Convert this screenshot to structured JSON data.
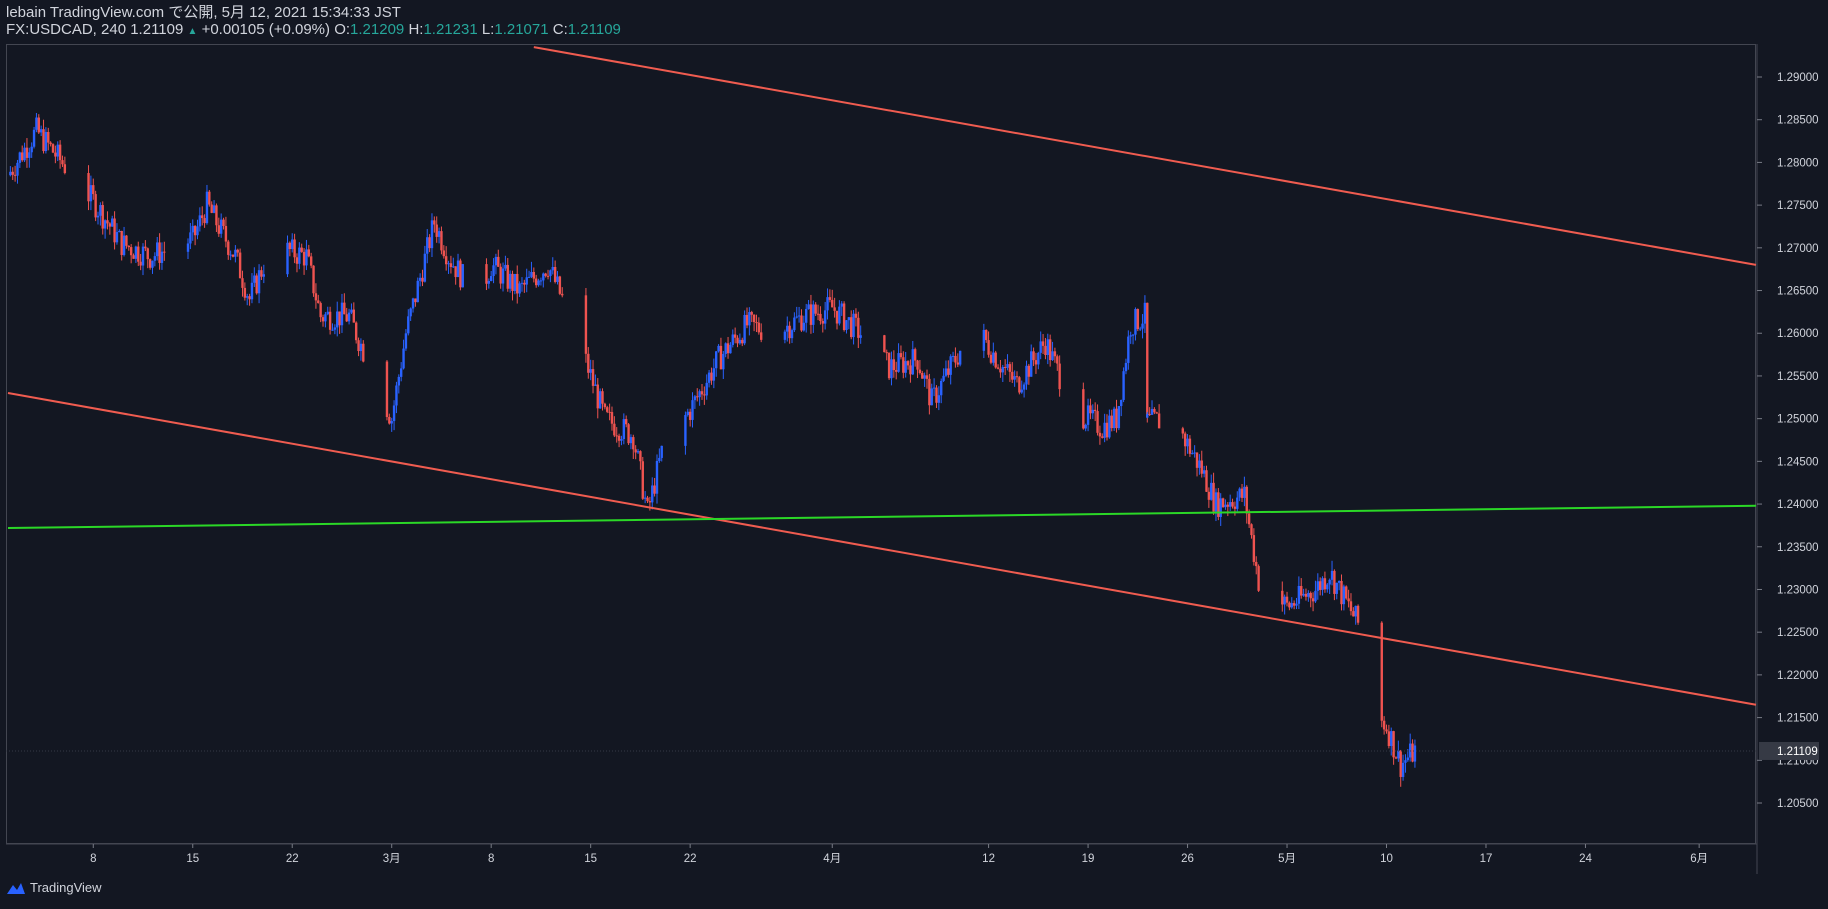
{
  "header": {
    "line1": "lebain TradingView.com で公開, 5月 12, 2021 15:34:33 JST",
    "symbol": "FX:USDCAD, 240",
    "price": "1.21109",
    "change": "+0.00105 (+0.09%)",
    "o_label": "O:",
    "o_value": "1.21209",
    "h_label": "H:",
    "h_value": "1.21231",
    "l_label": "L:",
    "l_value": "1.21071",
    "c_label": "C:",
    "c_value": "1.21109"
  },
  "brand": {
    "name": "TradingView",
    "icon": "tradingview-logo-icon"
  },
  "colors": {
    "background": "#131722",
    "up": "#2962ff",
    "down": "#ef5350",
    "channel": "#f05c50",
    "support": "#2bd827",
    "axis_text": "#d1d4dc",
    "last_price_label_bg": "#363a45"
  },
  "chart_data": {
    "type": "candlestick",
    "title": "",
    "y_axis": {
      "ticks": [
        "1.29000",
        "1.28500",
        "1.28000",
        "1.27500",
        "1.27000",
        "1.26500",
        "1.26000",
        "1.25500",
        "1.25000",
        "1.24500",
        "1.24000",
        "1.23500",
        "1.23000",
        "1.22500",
        "1.22000",
        "1.21500",
        "1.21000",
        "1.20500"
      ],
      "last_price_label": "1.21109"
    },
    "x_axis": {
      "ticks": [
        "8",
        "15",
        "22",
        "3月",
        "8",
        "15",
        "22",
        "4月",
        "12",
        "19",
        "26",
        "5月",
        "10",
        "17",
        "24",
        "6月"
      ]
    },
    "lines": [
      {
        "name": "channel-upper",
        "from": [
          "2021-03-11",
          1.2935
        ],
        "to": [
          "2021-06-05",
          1.268
        ]
      },
      {
        "name": "channel-lower",
        "from": [
          "2021-02-02",
          1.253
        ],
        "to": [
          "2021-06-05",
          1.2165
        ]
      },
      {
        "name": "support",
        "from": [
          "2021-02-02",
          1.2372
        ],
        "to": [
          "2021-06-05",
          1.2398
        ]
      }
    ],
    "path": [
      [
        "2021-02-02",
        1.2785
      ],
      [
        "2021-02-04",
        1.2837
      ],
      [
        "2021-02-08",
        1.2755
      ],
      [
        "2021-02-10",
        1.2705
      ],
      [
        "2021-02-12",
        1.269
      ],
      [
        "2021-02-15",
        1.271
      ],
      [
        "2021-02-16",
        1.275
      ],
      [
        "2021-02-18",
        1.269
      ],
      [
        "2021-02-19",
        1.264
      ],
      [
        "2021-02-20",
        1.268
      ],
      [
        "2021-02-21",
        1.27
      ],
      [
        "2021-02-23",
        1.269
      ],
      [
        "2021-02-24",
        1.262
      ],
      [
        "2021-02-26",
        1.262
      ],
      [
        "2021-02-28",
        1.254
      ],
      [
        "2021-03-01",
        1.25
      ],
      [
        "2021-03-02",
        1.26
      ],
      [
        "2021-03-04",
        1.273
      ],
      [
        "2021-03-05",
        1.269
      ],
      [
        "2021-03-07",
        1.264
      ],
      [
        "2021-03-08",
        1.268
      ],
      [
        "2021-03-10",
        1.265
      ],
      [
        "2021-03-12",
        1.268
      ],
      [
        "2021-03-14",
        1.26
      ],
      [
        "2021-03-16",
        1.25
      ],
      [
        "2021-03-18",
        1.248
      ],
      [
        "2021-03-19",
        1.239
      ],
      [
        "2021-03-20",
        1.246
      ],
      [
        "2021-03-22",
        1.251
      ],
      [
        "2021-03-24",
        1.257
      ],
      [
        "2021-03-26",
        1.261
      ],
      [
        "2021-03-28",
        1.26
      ],
      [
        "2021-03-30",
        1.262
      ],
      [
        "2021-04-01",
        1.263
      ],
      [
        "2021-04-03",
        1.26
      ],
      [
        "2021-04-05",
        1.256
      ],
      [
        "2021-04-07",
        1.257
      ],
      [
        "2021-04-08",
        1.252
      ],
      [
        "2021-04-10",
        1.258
      ],
      [
        "2021-04-11",
        1.261
      ],
      [
        "2021-04-13",
        1.256
      ],
      [
        "2021-04-14",
        1.254
      ],
      [
        "2021-04-16",
        1.259
      ],
      [
        "2021-04-18",
        1.251
      ],
      [
        "2021-04-20",
        1.249
      ],
      [
        "2021-04-21",
        1.25
      ],
      [
        "2021-04-22",
        1.261
      ],
      [
        "2021-04-23",
        1.262
      ],
      [
        "2021-04-23",
        1.2495
      ],
      [
        "2021-04-25",
        1.25
      ],
      [
        "2021-04-27",
        1.244
      ],
      [
        "2021-04-28",
        1.24
      ],
      [
        "2021-04-30",
        1.241
      ],
      [
        "2021-05-01",
        1.231
      ],
      [
        "2021-05-03",
        1.228
      ],
      [
        "2021-05-05",
        1.23
      ],
      [
        "2021-05-06",
        1.232
      ],
      [
        "2021-05-07",
        1.229
      ],
      [
        "2021-05-08",
        1.226
      ],
      [
        "2021-05-09",
        1.216
      ],
      [
        "2021-05-10",
        1.214
      ],
      [
        "2021-05-11",
        1.2095
      ],
      [
        "2021-05-12",
        1.2111
      ]
    ]
  }
}
